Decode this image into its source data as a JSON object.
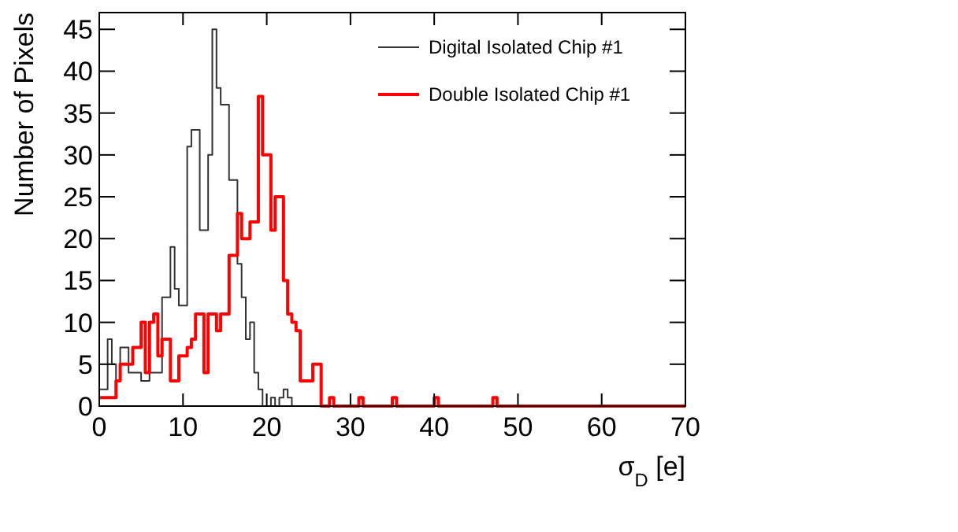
{
  "chart_data": {
    "type": "histogram",
    "xlabel": "σ$_{D}$ [e]",
    "ylabel": "Number of Pixels",
    "bins": [
      0,
      0.5,
      1,
      1.5,
      2,
      2.5,
      3,
      3.5,
      4,
      4.5,
      5,
      5.5,
      6,
      6.5,
      7,
      7.5,
      8,
      8.5,
      9,
      9.5,
      10,
      10.5,
      11,
      11.5,
      12,
      12.5,
      13,
      13.5,
      14,
      14.5,
      15,
      15.5,
      16,
      16.5,
      17,
      17.5,
      18,
      18.5,
      19,
      19.5,
      20,
      20.5,
      21,
      21.5,
      22,
      22.5,
      23,
      23.5,
      24,
      24.5,
      25,
      25.5,
      26,
      26.5,
      27,
      27.5,
      28,
      28.5,
      29,
      29.5,
      30,
      30.5,
      31,
      31.5,
      32,
      32.5,
      33,
      33.5,
      34,
      34.5,
      35,
      35.5,
      36,
      36.5,
      37,
      37.5,
      38,
      38.5,
      39,
      39.5,
      40,
      40.5,
      41,
      41.5,
      42,
      42.5,
      43,
      43.5,
      44,
      44.5,
      45,
      45.5,
      46,
      46.5,
      47,
      47.5,
      48,
      48.5,
      49,
      49.5,
      50,
      50.5,
      51,
      51.5,
      52,
      52.5,
      53,
      53.5,
      54,
      54.5,
      55,
      55.5,
      56,
      56.5,
      57,
      57.5,
      58,
      58.5,
      59,
      59.5,
      60,
      60.5,
      61,
      61.5,
      62,
      62.5,
      63,
      63.5,
      64,
      64.5,
      65,
      65.5,
      66,
      66.5,
      67,
      67.5,
      68,
      68.5,
      69,
      69.5,
      70
    ],
    "series": [
      {
        "name": "Digital Isolated Chip #1",
        "color": "#333333",
        "values": [
          2,
          2,
          8,
          5,
          3,
          7,
          7,
          4,
          4,
          4,
          3,
          3,
          4,
          4,
          4,
          13,
          13,
          19,
          14,
          12,
          12,
          31,
          33,
          33,
          21,
          21,
          30,
          45,
          38,
          36,
          36,
          27,
          27,
          17,
          13,
          8,
          10,
          4,
          2,
          0,
          0,
          1,
          0,
          1,
          2,
          1,
          0,
          0,
          0,
          0,
          0,
          0,
          0,
          0,
          0,
          0,
          0,
          0,
          0,
          0,
          0,
          0,
          0,
          0,
          0,
          0,
          0,
          0,
          0,
          0,
          0,
          0,
          0,
          0,
          0,
          0,
          0,
          0,
          0,
          0,
          0,
          0,
          0,
          0,
          0,
          0,
          0,
          0,
          0,
          0,
          0,
          0,
          0,
          0,
          0,
          0,
          0,
          0,
          0,
          0,
          0,
          0,
          0,
          0,
          0,
          0,
          0,
          0,
          0,
          0,
          0,
          0,
          0,
          0,
          0,
          0,
          0,
          0,
          0,
          0,
          0,
          0,
          0,
          0,
          0,
          0,
          0,
          0,
          0,
          0,
          0,
          0,
          0,
          0,
          0,
          0,
          0,
          0,
          0,
          0
        ]
      },
      {
        "name": "Double Isolated Chip #1",
        "color": "#ff0000",
        "values": [
          1,
          1,
          1,
          1,
          3,
          5,
          5,
          5,
          7,
          7,
          10,
          4,
          10,
          11,
          6,
          8,
          8,
          3,
          3,
          6,
          6,
          7,
          8,
          11,
          11,
          4,
          11,
          11,
          9,
          11,
          11,
          18,
          18,
          23,
          20,
          20,
          22,
          22,
          37,
          30,
          30,
          21,
          25,
          25,
          15,
          11,
          10,
          9,
          3,
          3,
          3,
          5,
          5,
          0,
          0,
          1,
          0,
          0,
          0,
          0,
          0,
          0,
          1,
          0,
          0,
          0,
          0,
          0,
          0,
          0,
          1,
          0,
          0,
          0,
          0,
          0,
          0,
          0,
          0,
          0,
          1,
          0,
          0,
          0,
          0,
          0,
          0,
          0,
          0,
          0,
          0,
          0,
          0,
          0,
          1,
          0,
          0,
          0,
          0,
          0,
          0,
          0,
          0,
          0,
          0,
          0,
          0,
          0,
          0,
          0,
          0,
          0,
          0,
          0,
          0,
          0,
          0,
          0,
          0,
          0,
          0,
          0,
          0,
          0,
          0,
          0,
          0,
          0,
          0,
          0,
          0,
          0,
          0,
          0,
          0,
          0,
          0,
          0,
          0,
          0
        ]
      }
    ],
    "xlim": [
      0,
      70
    ],
    "xticks": [
      0,
      10,
      20,
      30,
      40,
      50,
      60,
      70
    ],
    "ylim": [
      0,
      47
    ],
    "yticks": [
      0,
      5,
      10,
      15,
      20,
      25,
      30,
      35,
      40,
      45
    ],
    "legend": "top right",
    "grid": false
  }
}
